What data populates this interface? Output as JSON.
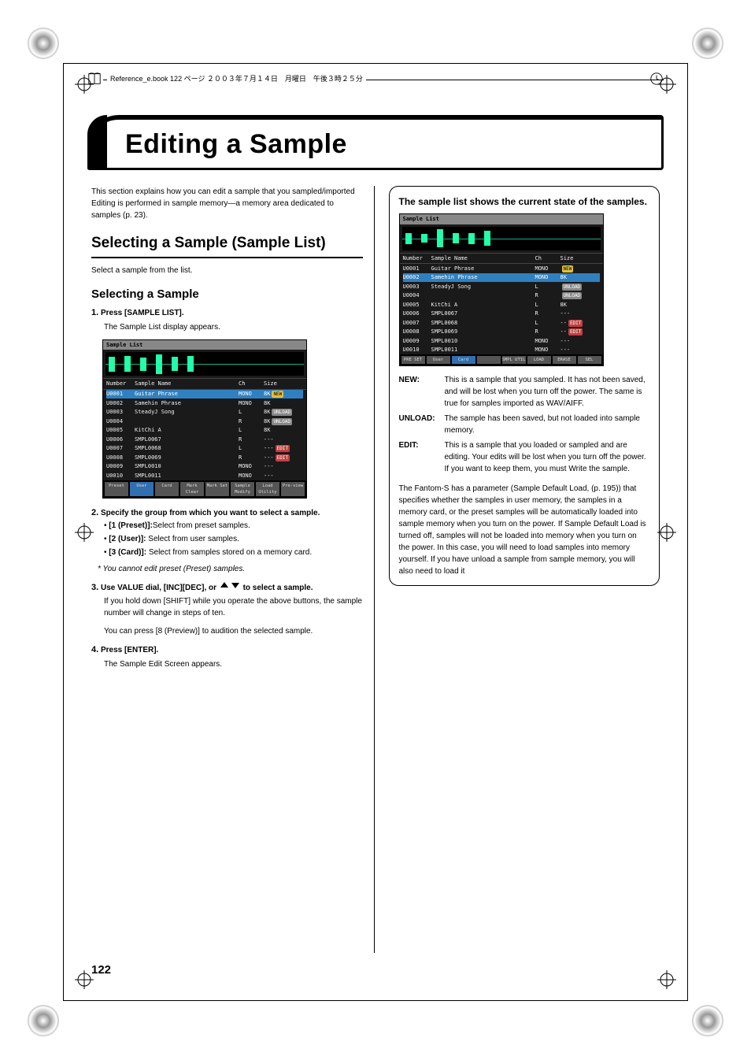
{
  "header": {
    "text": "Reference_e.book 122 ページ ２００３年７月１４日　月曜日　午後３時２５分"
  },
  "title": "Editing a Sample",
  "intro": {
    "p1": "This section explains how you can edit a sample that you sampled/imported",
    "p2": "Editing is performed in sample memory—a memory area dedicated to samples (p. 23)."
  },
  "section1": {
    "heading": "Selecting a Sample (Sample List)",
    "text": "Select a sample from the list."
  },
  "section2": {
    "heading": "Selecting a Sample",
    "step1": {
      "num": "1.",
      "label": "Press [SAMPLE LIST].",
      "body": "The Sample List display appears."
    },
    "step2": {
      "num": "2.",
      "label": "Specify the group from which you want to select a sample.",
      "b1_label": "[1 (Preset)]:",
      "b1_text": "Select from preset samples.",
      "b2_label": "[2 (User)]:",
      "b2_text": "Select from user samples.",
      "b3_label": "[3 (Card)]:",
      "b3_text": "Select from samples stored on a memory card.",
      "note": "* You cannot edit preset (Preset) samples."
    },
    "step3": {
      "num": "3.",
      "label_a": "Use VALUE dial, [INC][DEC], or ",
      "label_b": " to select a sample.",
      "body1": "If you hold down [SHIFT] while you operate the above buttons, the sample number will change in steps of ten.",
      "body2": "You can press [8 (Preview)] to audition the selected sample."
    },
    "step4": {
      "num": "4.",
      "label": "Press [ENTER].",
      "body": "The Sample Edit Screen appears."
    }
  },
  "screenshot1": {
    "title": "Sample List",
    "cols": {
      "num": "Number",
      "name": "Sample Name",
      "ch": "Ch",
      "size": "Size"
    },
    "rows": [
      {
        "num": "U0001",
        "name": "Guitar Phrase",
        "ch": "MONO",
        "size": "8K",
        "tag": "NEW",
        "sel": true
      },
      {
        "num": "U0002",
        "name": "Samehin Phrase",
        "ch": "MONO",
        "size": "8K",
        "tag": ""
      },
      {
        "num": "U0003",
        "name": "SteadyJ Song",
        "ch": "L",
        "size": "8K",
        "tag": "UNLOAD"
      },
      {
        "num": "U0004",
        "name": "",
        "ch": "R",
        "size": "8K",
        "tag": "UNLOAD"
      },
      {
        "num": "U0005",
        "name": "KitChi A",
        "ch": "L",
        "size": "8K",
        "tag": ""
      },
      {
        "num": "U0006",
        "name": "SMPL0067",
        "ch": "R",
        "size": "---",
        "tag": ""
      },
      {
        "num": "U0007",
        "name": "SMPL0068",
        "ch": "L",
        "size": "---",
        "tag": "EDIT"
      },
      {
        "num": "U0008",
        "name": "SMPL0069",
        "ch": "R",
        "size": "---",
        "tag": "EDIT"
      },
      {
        "num": "U0009",
        "name": "SMPL0010",
        "ch": "MONO",
        "size": "---",
        "tag": ""
      },
      {
        "num": "U0010",
        "name": "SMPL0011",
        "ch": "MONO",
        "size": "---",
        "tag": ""
      }
    ],
    "footer": [
      "Preset",
      "User",
      "Card",
      "Mark Clear",
      "Mark Set",
      "Sample Modify",
      "Load Utility",
      "Pre-view"
    ]
  },
  "screenshot2": {
    "title": "Sample List",
    "cols": {
      "num": "Number",
      "name": "Sample Name",
      "ch": "Ch",
      "size": "Size"
    },
    "rows": [
      {
        "num": "U0001",
        "name": "Guitar Phrase",
        "ch": "MONO",
        "size": "",
        "tag": "NEW",
        "badge": true
      },
      {
        "num": "U0002",
        "name": "Samehin Phrase",
        "ch": "MONO",
        "size": "8K",
        "tag": "",
        "sel": true
      },
      {
        "num": "U0003",
        "name": "SteadyJ Song",
        "ch": "L",
        "size": "",
        "tag": "UNLOAD"
      },
      {
        "num": "U0004",
        "name": "",
        "ch": "R",
        "size": "",
        "tag": "UNLOAD"
      },
      {
        "num": "U0005",
        "name": "KitChi A",
        "ch": "L",
        "size": "8K",
        "tag": ""
      },
      {
        "num": "U0006",
        "name": "SMPL0067",
        "ch": "R",
        "size": "---",
        "tag": ""
      },
      {
        "num": "U0007",
        "name": "SMPL0068",
        "ch": "L",
        "size": "--",
        "tag": "EDIT"
      },
      {
        "num": "U0008",
        "name": "SMPL0069",
        "ch": "R",
        "size": "--",
        "tag": "EDIT"
      },
      {
        "num": "U0009",
        "name": "SMPL0010",
        "ch": "MONO",
        "size": "---",
        "tag": ""
      },
      {
        "num": "U0010",
        "name": "SMPL0011",
        "ch": "MONO",
        "size": "---",
        "tag": ""
      }
    ],
    "footer": [
      "PRE SET",
      "User",
      "Card",
      "",
      "SMPL UTIL",
      "LOAD",
      "ERASE",
      "SEL"
    ]
  },
  "info": {
    "title": "The sample list shows the current state of the samples.",
    "defs": [
      {
        "label": "NEW:",
        "text": "This is a sample that you sampled. It has not been saved, and will be lost when you turn off the power. The same is true for samples imported as WAV/AIFF."
      },
      {
        "label": "UNLOAD:",
        "text": "The sample has been saved, but not loaded into sample memory."
      },
      {
        "label": "EDIT:",
        "text": "This is a sample that you loaded or sampled and are editing. Your edits will be lost when you turn off the power. If you want to keep them, you must Write the sample."
      }
    ],
    "para": "The Fantom-S has a parameter (Sample Default Load, (p. 195)) that specifies whether the samples in user memory, the samples in a memory card, or the preset samples will be automatically loaded into sample memory when you turn on the power. If Sample Default Load is turned off, samples will not be loaded into memory when you turn on the power. In this case, you will need to load samples into memory yourself. If you have unload a sample from sample memory, you will also need to load it"
  },
  "page_num": "122",
  "colors": {
    "text": "#000000",
    "bg": "#ffffff",
    "screenshot_bg": "#1a1a1a",
    "waveform": "#2fa060",
    "sel_row": "#3080c0",
    "tag_new": "#e0c040",
    "tag_unload": "#888888",
    "tag_edit": "#c04040"
  }
}
